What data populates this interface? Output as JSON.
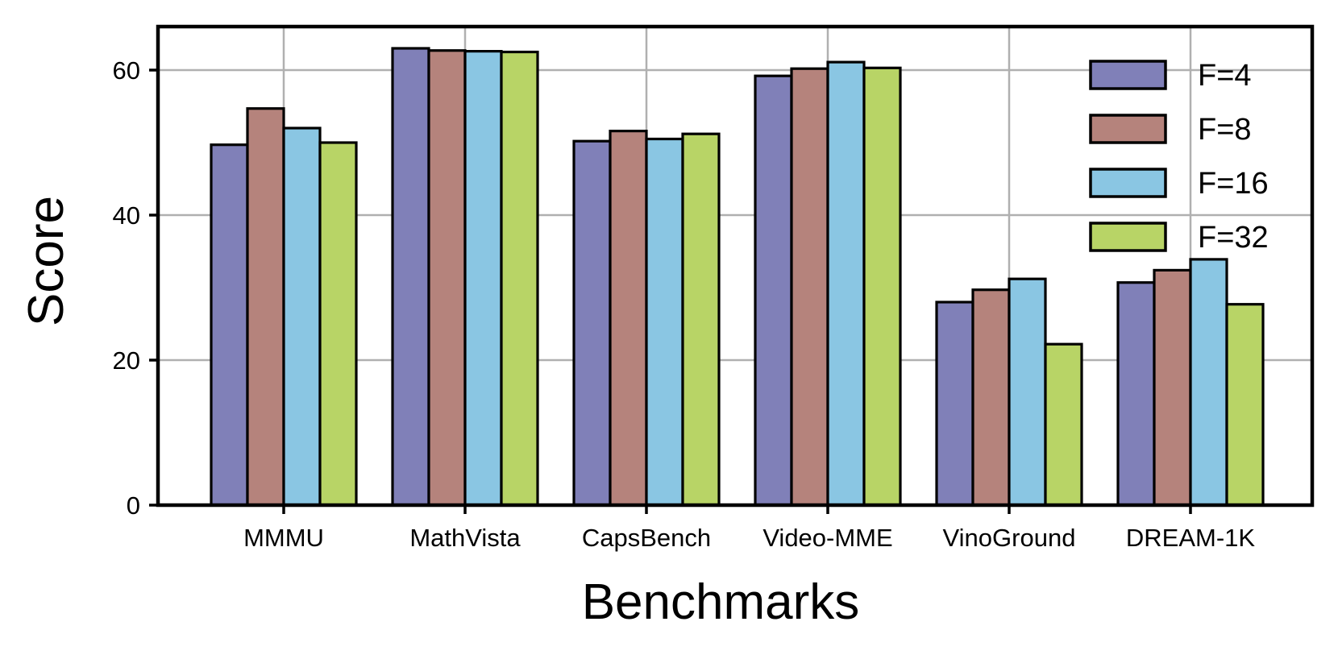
{
  "chart_data": {
    "type": "bar",
    "categories": [
      "MMMU",
      "MathVista",
      "CapsBench",
      "Video-MME",
      "VinoGround",
      "DREAM-1K"
    ],
    "series": [
      {
        "name": "F=4",
        "color": "#8080b8",
        "values": [
          49.7,
          63.0,
          50.2,
          59.2,
          28.0,
          30.7
        ]
      },
      {
        "name": "F=8",
        "color": "#b5837c",
        "values": [
          54.7,
          62.7,
          51.6,
          60.2,
          29.7,
          32.4
        ]
      },
      {
        "name": "F=16",
        "color": "#8ac6e3",
        "values": [
          52.0,
          62.6,
          50.5,
          61.1,
          31.2,
          33.9
        ]
      },
      {
        "name": "F=32",
        "color": "#b8d466",
        "values": [
          50.0,
          62.5,
          51.2,
          60.3,
          22.2,
          27.7
        ]
      }
    ],
    "xlabel": "Benchmarks",
    "ylabel": "Score",
    "ylim": [
      0,
      66
    ],
    "yticks": [
      0,
      20,
      40,
      60
    ],
    "grid": true,
    "legend_position": "top-right",
    "grid_color": "#b0b0b0",
    "edge_color": "#000000"
  }
}
